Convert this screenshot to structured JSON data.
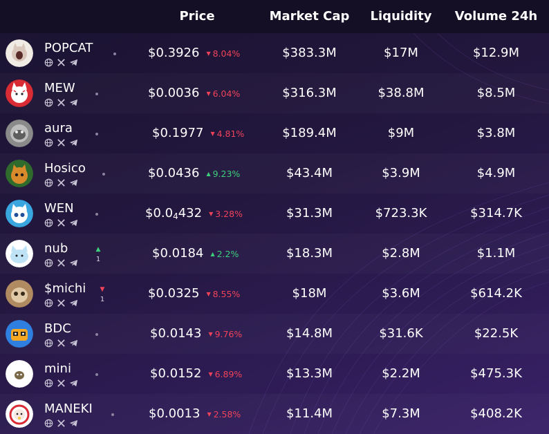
{
  "header": {
    "price": "Price",
    "market_cap": "Market Cap",
    "liquidity": "Liquidity",
    "volume": "Volume 24h"
  },
  "colors": {
    "down": "#f0435a",
    "up": "#3ed17c",
    "header_bg": "#140f24"
  },
  "social_icons": [
    "globe-icon",
    "x-icon",
    "telegram-icon"
  ],
  "rows": [
    {
      "name": "POPCAT",
      "price": "$0.3926",
      "change": "8.04%",
      "dir": "down",
      "market_cap": "$383.3M",
      "liquidity": "$17M",
      "volume": "$12.9M",
      "trend": ""
    },
    {
      "name": "MEW",
      "price": "$0.0036",
      "change": "6.04%",
      "dir": "down",
      "market_cap": "$316.3M",
      "liquidity": "$38.8M",
      "volume": "$8.5M",
      "trend": ""
    },
    {
      "name": "aura",
      "price": "$0.1977",
      "change": "4.81%",
      "dir": "down",
      "market_cap": "$189.4M",
      "liquidity": "$9M",
      "volume": "$3.8M",
      "trend": ""
    },
    {
      "name": "Hosico",
      "price": "$0.0436",
      "change": "9.23%",
      "dir": "up",
      "market_cap": "$43.4M",
      "liquidity": "$3.9M",
      "volume": "$4.9M",
      "trend": ""
    },
    {
      "name": "WEN",
      "price_main": "$0.0",
      "price_sub": "4",
      "price_tail": "432",
      "change": "3.28%",
      "dir": "down",
      "market_cap": "$31.3M",
      "liquidity": "$723.3K",
      "volume": "$314.7K",
      "trend": ""
    },
    {
      "name": "nub",
      "price": "$0.0184",
      "change": "2.2%",
      "dir": "up",
      "market_cap": "$18.3M",
      "liquidity": "$2.8M",
      "volume": "$1.1M",
      "trend": "up",
      "trend_count": "1"
    },
    {
      "name": "$michi",
      "price": "$0.0325",
      "change": "8.55%",
      "dir": "down",
      "market_cap": "$18M",
      "liquidity": "$3.6M",
      "volume": "$614.2K",
      "trend": "down",
      "trend_count": "1"
    },
    {
      "name": "BDC",
      "price": "$0.0143",
      "change": "9.76%",
      "dir": "down",
      "market_cap": "$14.8M",
      "liquidity": "$31.6K",
      "volume": "$22.5K",
      "trend": ""
    },
    {
      "name": "mini",
      "price": "$0.0152",
      "change": "6.89%",
      "dir": "down",
      "market_cap": "$13.3M",
      "liquidity": "$2.2M",
      "volume": "$475.3K",
      "trend": ""
    },
    {
      "name": "MANEKI",
      "price": "$0.0013",
      "change": "2.58%",
      "dir": "down",
      "market_cap": "$11.4M",
      "liquidity": "$7.3M",
      "volume": "$408.2K",
      "trend": ""
    }
  ]
}
